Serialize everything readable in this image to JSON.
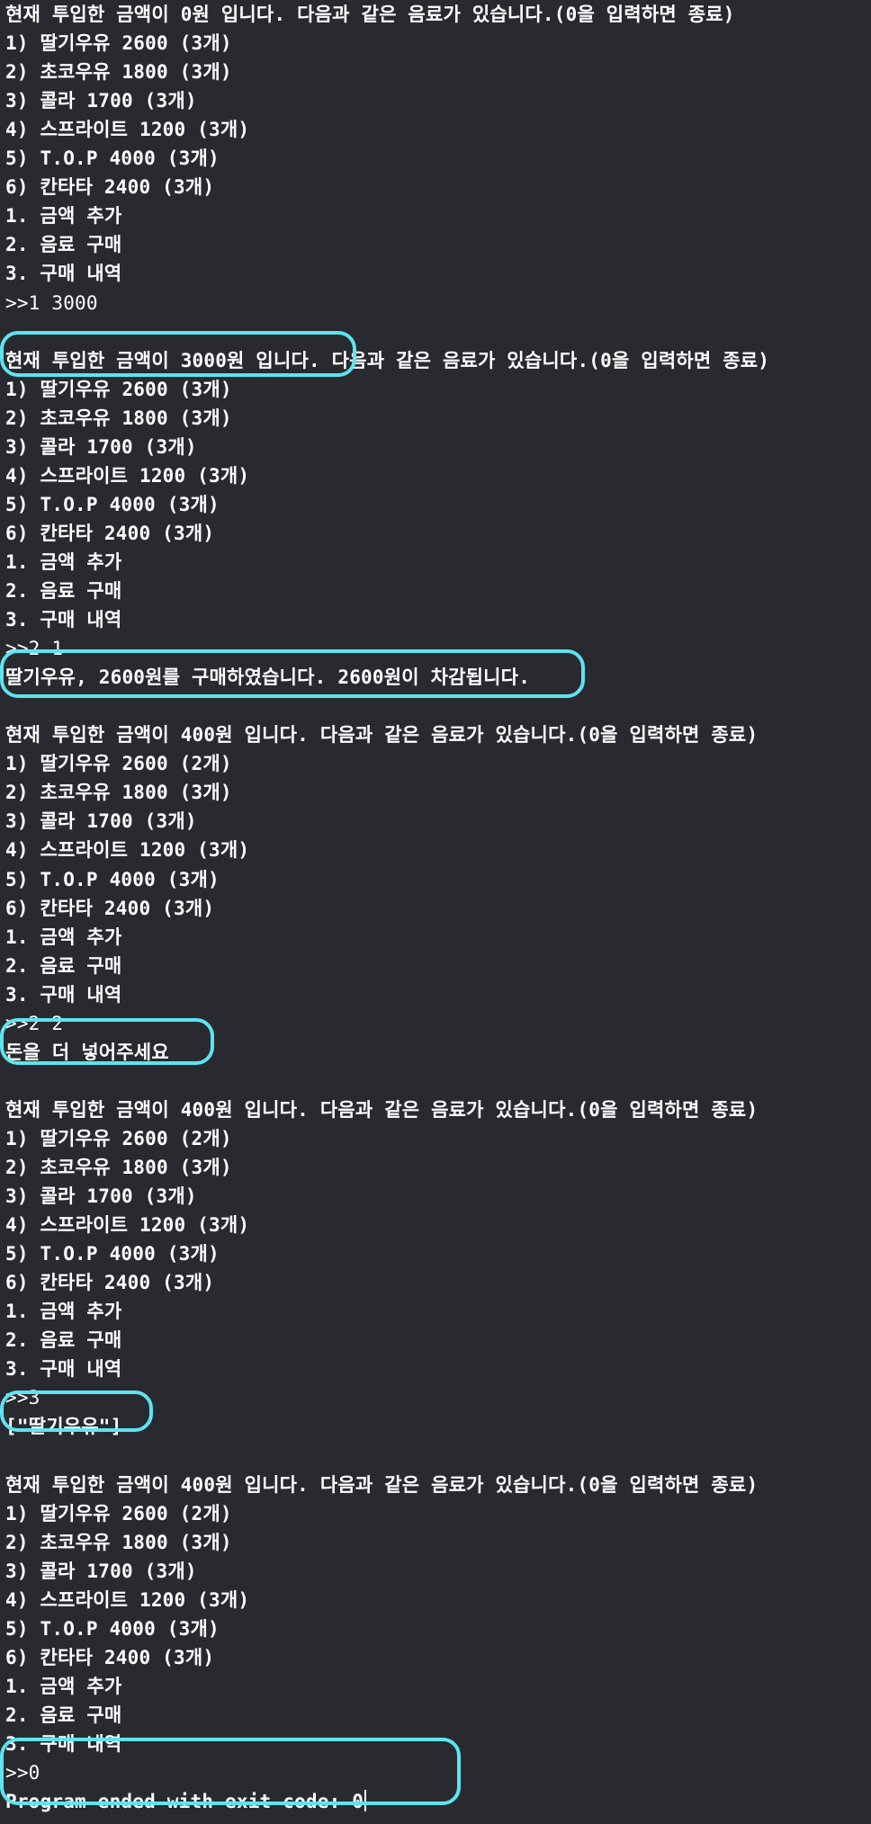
{
  "console": {
    "lines": [
      {
        "text": "현재 투입한 금액이 0원 입니다. 다음과 같은 음료가 있습니다.(0을 입력하면 종료)",
        "kind": "output"
      },
      {
        "text": "1) 딸기우유 2600 (3개)",
        "kind": "output"
      },
      {
        "text": "2) 초코우유 1800 (3개)",
        "kind": "output"
      },
      {
        "text": "3) 콜라 1700 (3개)",
        "kind": "output"
      },
      {
        "text": "4) 스프라이트 1200 (3개)",
        "kind": "output"
      },
      {
        "text": "5) T.O.P 4000 (3개)",
        "kind": "output"
      },
      {
        "text": "6) 칸타타 2400 (3개)",
        "kind": "output"
      },
      {
        "text": "1. 금액 추가",
        "kind": "output"
      },
      {
        "text": "2. 음료 구매",
        "kind": "output"
      },
      {
        "text": "3. 구매 내역",
        "kind": "output"
      },
      {
        "text": ">>1 3000",
        "kind": "input"
      },
      {
        "text": "",
        "kind": "blank"
      },
      {
        "text": "현재 투입한 금액이 3000원 입니다. 다음과 같은 음료가 있습니다.(0을 입력하면 종료)",
        "kind": "output"
      },
      {
        "text": "1) 딸기우유 2600 (3개)",
        "kind": "output"
      },
      {
        "text": "2) 초코우유 1800 (3개)",
        "kind": "output"
      },
      {
        "text": "3) 콜라 1700 (3개)",
        "kind": "output"
      },
      {
        "text": "4) 스프라이트 1200 (3개)",
        "kind": "output"
      },
      {
        "text": "5) T.O.P 4000 (3개)",
        "kind": "output"
      },
      {
        "text": "6) 칸타타 2400 (3개)",
        "kind": "output"
      },
      {
        "text": "1. 금액 추가",
        "kind": "output"
      },
      {
        "text": "2. 음료 구매",
        "kind": "output"
      },
      {
        "text": "3. 구매 내역",
        "kind": "output"
      },
      {
        "text": ">>2 1",
        "kind": "input"
      },
      {
        "text": "딸기우유, 2600원를 구매하였습니다. 2600원이 차감됩니다.",
        "kind": "output"
      },
      {
        "text": "",
        "kind": "blank"
      },
      {
        "text": "현재 투입한 금액이 400원 입니다. 다음과 같은 음료가 있습니다.(0을 입력하면 종료)",
        "kind": "output"
      },
      {
        "text": "1) 딸기우유 2600 (2개)",
        "kind": "output"
      },
      {
        "text": "2) 초코우유 1800 (3개)",
        "kind": "output"
      },
      {
        "text": "3) 콜라 1700 (3개)",
        "kind": "output"
      },
      {
        "text": "4) 스프라이트 1200 (3개)",
        "kind": "output"
      },
      {
        "text": "5) T.O.P 4000 (3개)",
        "kind": "output"
      },
      {
        "text": "6) 칸타타 2400 (3개)",
        "kind": "output"
      },
      {
        "text": "1. 금액 추가",
        "kind": "output"
      },
      {
        "text": "2. 음료 구매",
        "kind": "output"
      },
      {
        "text": "3. 구매 내역",
        "kind": "output"
      },
      {
        "text": ">>2 2",
        "kind": "input"
      },
      {
        "text": "돈을 더 넣어주세요",
        "kind": "output"
      },
      {
        "text": "",
        "kind": "blank"
      },
      {
        "text": "현재 투입한 금액이 400원 입니다. 다음과 같은 음료가 있습니다.(0을 입력하면 종료)",
        "kind": "output"
      },
      {
        "text": "1) 딸기우유 2600 (2개)",
        "kind": "output"
      },
      {
        "text": "2) 초코우유 1800 (3개)",
        "kind": "output"
      },
      {
        "text": "3) 콜라 1700 (3개)",
        "kind": "output"
      },
      {
        "text": "4) 스프라이트 1200 (3개)",
        "kind": "output"
      },
      {
        "text": "5) T.O.P 4000 (3개)",
        "kind": "output"
      },
      {
        "text": "6) 칸타타 2400 (3개)",
        "kind": "output"
      },
      {
        "text": "1. 금액 추가",
        "kind": "output"
      },
      {
        "text": "2. 음료 구매",
        "kind": "output"
      },
      {
        "text": "3. 구매 내역",
        "kind": "output"
      },
      {
        "text": ">>3",
        "kind": "input"
      },
      {
        "text": "[\"딸기우유\"]",
        "kind": "output"
      },
      {
        "text": "",
        "kind": "blank"
      },
      {
        "text": "현재 투입한 금액이 400원 입니다. 다음과 같은 음료가 있습니다.(0을 입력하면 종료)",
        "kind": "output"
      },
      {
        "text": "1) 딸기우유 2600 (2개)",
        "kind": "output"
      },
      {
        "text": "2) 초코우유 1800 (3개)",
        "kind": "output"
      },
      {
        "text": "3) 콜라 1700 (3개)",
        "kind": "output"
      },
      {
        "text": "4) 스프라이트 1200 (3개)",
        "kind": "output"
      },
      {
        "text": "5) T.O.P 4000 (3개)",
        "kind": "output"
      },
      {
        "text": "6) 칸타타 2400 (3개)",
        "kind": "output"
      },
      {
        "text": "1. 금액 추가",
        "kind": "output"
      },
      {
        "text": "2. 음료 구매",
        "kind": "output"
      },
      {
        "text": "3. 구매 내역",
        "kind": "output"
      },
      {
        "text": ">>0",
        "kind": "input"
      },
      {
        "text": "Program ended with exit code: 0",
        "kind": "output"
      }
    ]
  },
  "colors": {
    "background": "#292a30",
    "text": "#ffffff",
    "highlight": "#5de4ef"
  }
}
